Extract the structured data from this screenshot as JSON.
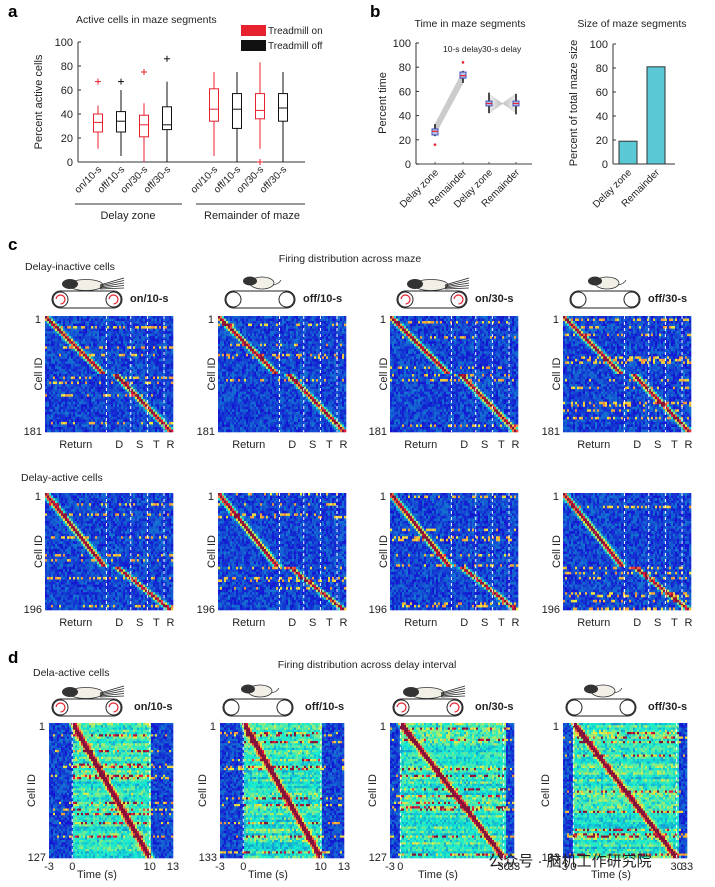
{
  "figure": {
    "panels": {
      "a": {
        "letter": "a"
      },
      "b": {
        "letter": "b"
      },
      "c": {
        "letter": "c",
        "title": "Firing distribution across maze",
        "row_labels": [
          "Delay-inactive cells",
          "Delay-active cells"
        ]
      },
      "d": {
        "letter": "d",
        "title": "Firing distribution across delay interval",
        "row_label": "Dela-active cells"
      }
    },
    "conditions": [
      {
        "label": "on/10-s",
        "treadmill": "on",
        "color": "#e8212e"
      },
      {
        "label": "off/10-s",
        "treadmill": "off",
        "color": "#111111"
      },
      {
        "label": "on/30-s",
        "treadmill": "on",
        "color": "#e8212e"
      },
      {
        "label": "off/30-s",
        "treadmill": "off",
        "color": "#111111"
      }
    ],
    "icons": {
      "running_mouse": "mouse-on-treadmill-icon",
      "standing_mouse": "mouse-standing-icon"
    },
    "watermark": "公众号 · 脑机工作研究院"
  },
  "chart_data": [
    {
      "id": "a",
      "type": "box",
      "title": "Active cells in maze segments",
      "ylabel": "Percent active cells",
      "ylim": [
        0,
        100
      ],
      "yticks": [
        0,
        20,
        40,
        60,
        80,
        100
      ],
      "legend": {
        "position": "top-right",
        "entries": [
          {
            "label": "Treadmill on",
            "color": "#e8212e"
          },
          {
            "label": "Treadmill off",
            "color": "#111111"
          }
        ]
      },
      "groups": [
        "Delay zone",
        "Remainder of maze"
      ],
      "categories": [
        "on/10-s",
        "off/10-s",
        "on/30-s",
        "off/30-s",
        "on/10-s",
        "off/10-s",
        "on/30-s",
        "off/30-s"
      ],
      "boxes": [
        {
          "group": "Delay zone",
          "cond": "on/10-s",
          "color": "#e8212e",
          "min": 11,
          "q1": 25,
          "median": 33,
          "q3": 40,
          "max": 47,
          "outliers": [
            67
          ]
        },
        {
          "group": "Delay zone",
          "cond": "off/10-s",
          "color": "#111111",
          "min": 5,
          "q1": 25,
          "median": 34,
          "q3": 42,
          "max": 60,
          "outliers": [
            67
          ]
        },
        {
          "group": "Delay zone",
          "cond": "on/30-s",
          "color": "#e8212e",
          "min": 0,
          "q1": 21,
          "median": 31,
          "q3": 39,
          "max": 49,
          "outliers": [
            75
          ]
        },
        {
          "group": "Delay zone",
          "cond": "off/30-s",
          "color": "#111111",
          "min": 0,
          "q1": 27,
          "median": 31,
          "q3": 46,
          "max": 67,
          "outliers": [
            86
          ]
        },
        {
          "group": "Remainder of maze",
          "cond": "on/10-s",
          "color": "#e8212e",
          "min": 5,
          "q1": 34,
          "median": 44,
          "q3": 61,
          "max": 75,
          "outliers": []
        },
        {
          "group": "Remainder of maze",
          "cond": "off/10-s",
          "color": "#111111",
          "min": 0,
          "q1": 28,
          "median": 44,
          "q3": 57,
          "max": 75,
          "outliers": []
        },
        {
          "group": "Remainder of maze",
          "cond": "on/30-s",
          "color": "#e8212e",
          "min": 11,
          "q1": 36,
          "median": 43,
          "q3": 57,
          "max": 83,
          "outliers": [
            0
          ]
        },
        {
          "group": "Remainder of maze",
          "cond": "off/30-s",
          "color": "#111111",
          "min": 0,
          "q1": 34,
          "median": 45,
          "q3": 57,
          "max": 75,
          "outliers": []
        }
      ]
    },
    {
      "id": "b-left",
      "type": "box",
      "title": "Time in maze segments",
      "ylabel": "Percent time",
      "ylim": [
        0,
        100
      ],
      "yticks": [
        0,
        20,
        40,
        60,
        80,
        100
      ],
      "annotations": [
        "10-s delay",
        "30-s delay"
      ],
      "categories": [
        "Delay zone",
        "Remainder",
        "Delay zone",
        "Remainder"
      ],
      "boxes": [
        {
          "delay": "10-s delay",
          "cat": "Delay zone",
          "min": 23,
          "q1": 24,
          "median": 27,
          "q3": 29,
          "max": 33,
          "outliers": [
            16
          ]
        },
        {
          "delay": "10-s delay",
          "cat": "Remainder",
          "min": 67,
          "q1": 71,
          "median": 73,
          "q3": 76,
          "max": 77,
          "outliers": [
            84
          ]
        },
        {
          "delay": "30-s delay",
          "cat": "Delay zone",
          "min": 42,
          "q1": 48,
          "median": 50,
          "q3": 52,
          "max": 59,
          "outliers": []
        },
        {
          "delay": "30-s delay",
          "cat": "Remainder",
          "min": 41,
          "q1": 48,
          "median": 50,
          "q3": 52,
          "max": 58,
          "outliers": []
        }
      ],
      "paired_lines": true
    },
    {
      "id": "b-right",
      "type": "bar",
      "title": "Size of maze segments",
      "ylabel": "Percent of total maze size",
      "ylim": [
        0,
        100
      ],
      "yticks": [
        0,
        20,
        40,
        60,
        80,
        100
      ],
      "categories": [
        "Delay zone",
        "Remainder"
      ],
      "values": [
        19,
        81
      ],
      "color": "#5bc8d6"
    },
    {
      "id": "c",
      "type": "heatmap",
      "title": "Firing distribution across maze",
      "ylabel": "Cell ID",
      "x_segments": [
        "Return",
        "D",
        "S",
        "T",
        "R"
      ],
      "rows": [
        {
          "label": "Delay-inactive cells",
          "ymin": 1,
          "ymax": 181,
          "conditions": [
            "on/10-s",
            "off/10-s",
            "on/30-s",
            "off/30-s"
          ]
        },
        {
          "label": "Delay-active cells",
          "ymin": 1,
          "ymax": 196,
          "conditions": [
            "on/10-s",
            "off/10-s",
            "on/30-s",
            "off/30-s"
          ]
        }
      ],
      "colormap": "jet"
    },
    {
      "id": "d",
      "type": "heatmap",
      "title": "Firing distribution across delay interval",
      "ylabel": "Cell ID",
      "xlabel": "Time (s)",
      "maps": [
        {
          "cond": "on/10-s",
          "ymin": 1,
          "ymax": 127,
          "xlim": [
            -3,
            13
          ],
          "xticks": [
            -3,
            0,
            10,
            13
          ],
          "delay_end": 10
        },
        {
          "cond": "off/10-s",
          "ymin": 1,
          "ymax": 133,
          "xlim": [
            -3,
            13
          ],
          "xticks": [
            -3,
            0,
            10,
            13
          ],
          "delay_end": 10
        },
        {
          "cond": "on/30-s",
          "ymin": 1,
          "ymax": 127,
          "xlim": [
            -3,
            33
          ],
          "xticks": [
            -3,
            0,
            30,
            33
          ],
          "delay_end": 30
        },
        {
          "cond": "off/30-s",
          "ymin": 1,
          "ymax": 133,
          "xlim": [
            -3,
            33
          ],
          "xticks": [
            -3,
            0,
            30,
            33
          ],
          "delay_end": 30
        }
      ],
      "colormap": "jet"
    }
  ]
}
